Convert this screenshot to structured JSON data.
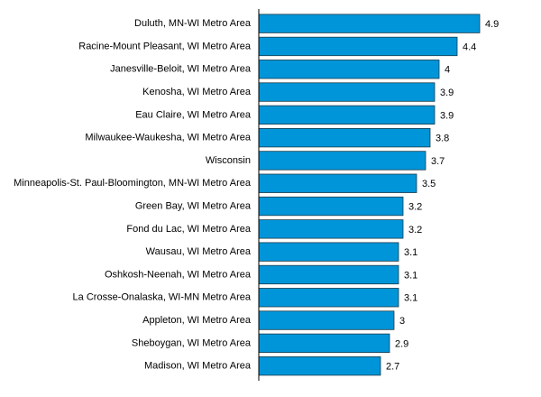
{
  "chart_data": {
    "type": "bar",
    "orientation": "horizontal",
    "categories": [
      "Duluth, MN-WI Metro Area",
      "Racine-Mount Pleasant, WI Metro Area",
      "Janesville-Beloit, WI Metro Area",
      "Kenosha, WI Metro Area",
      "Eau Claire, WI Metro Area",
      "Milwaukee-Waukesha, WI Metro Area",
      "Wisconsin",
      "Minneapolis-St. Paul-Bloomington, MN-WI Metro Area",
      "Green Bay, WI Metro Area",
      "Fond du Lac, WI Metro Area",
      "Wausau, WI Metro Area",
      "Oshkosh-Neenah, WI Metro Area",
      "La Crosse-Onalaska, WI-MN Metro Area",
      "Appleton, WI Metro Area",
      "Sheboygan, WI Metro Area",
      "Madison, WI Metro Area"
    ],
    "values": [
      4.9,
      4.4,
      4,
      3.9,
      3.9,
      3.8,
      3.7,
      3.5,
      3.2,
      3.2,
      3.1,
      3.1,
      3.1,
      3,
      2.9,
      2.7
    ],
    "color": "#0095d9",
    "xlim": [
      0,
      5
    ]
  }
}
